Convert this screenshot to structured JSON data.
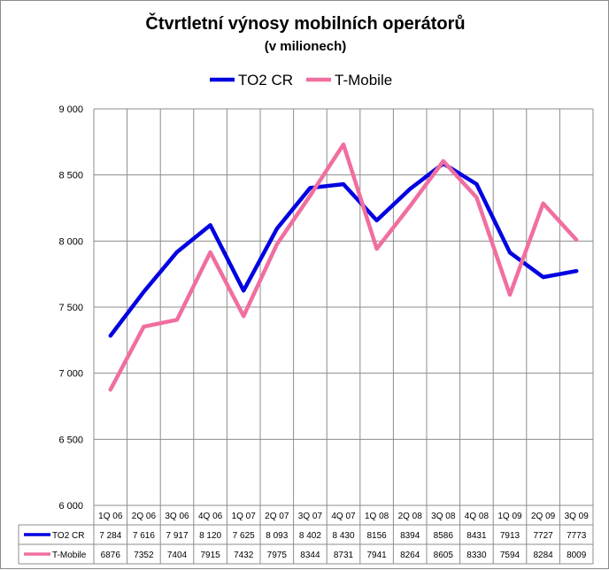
{
  "chart_data": {
    "type": "line",
    "title": "Čtvrtletní výnosy  mobilních operátorů",
    "subtitle": "(v milionech)",
    "categories": [
      "1Q 06",
      "2Q 06",
      "3Q 06",
      "4Q 06",
      "1Q 07",
      "2Q 07",
      "3Q 07",
      "4Q 07",
      "1Q 08",
      "2Q 08",
      "3Q 08",
      "4Q 08",
      "1Q 09",
      "2Q 09",
      "3Q 09"
    ],
    "series": [
      {
        "name": "TO2 CR",
        "color": "#0000e0",
        "values": [
          7284,
          7616,
          7917,
          8120,
          7625,
          8093,
          8402,
          8430,
          8156,
          8394,
          8586,
          8431,
          7913,
          7727,
          7773
        ],
        "labels": [
          "7 284",
          "7 616",
          "7 917",
          "8 120",
          "7 625",
          "8 093",
          "8 402",
          "8 430",
          "8156",
          "8394",
          "8586",
          "8431",
          "7913",
          "7727",
          "7773"
        ]
      },
      {
        "name": "T-Mobile",
        "color": "#f06ea0",
        "values": [
          6876,
          7352,
          7404,
          7915,
          7432,
          7975,
          8344,
          8731,
          7941,
          8264,
          8605,
          8330,
          7594,
          8284,
          8009
        ],
        "labels": [
          "6876",
          "7352",
          "7404",
          "7915",
          "7432",
          "7975",
          "8344",
          "8731",
          "7941",
          "8264",
          "8605",
          "8330",
          "7594",
          "8284",
          "8009"
        ]
      }
    ],
    "ylim": [
      6000,
      9000
    ],
    "yticks": [
      6000,
      6500,
      7000,
      7500,
      8000,
      8500,
      9000
    ],
    "ytick_labels": [
      "6 000",
      "6 500",
      "7 000",
      "7 500",
      "8 000",
      "8 500",
      "9 000"
    ],
    "grid": true,
    "legend": "top-center",
    "data_table": true
  }
}
